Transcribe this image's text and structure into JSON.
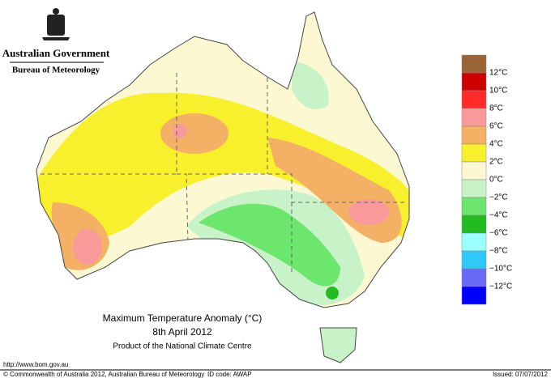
{
  "header": {
    "government": "Australian Government",
    "agency": "Bureau of Meteorology"
  },
  "map": {
    "title": "Maximum Temperature Anomaly (°C)",
    "date": "8th April 2012",
    "product": "Product of the National Climate Centre"
  },
  "legend": {
    "colors": [
      "#9b6436",
      "#cc0000",
      "#ff2a2a",
      "#f99a9a",
      "#f4b064",
      "#f8f02c",
      "#fbf8d2",
      "#c8f2c8",
      "#6ce66c",
      "#22bb22",
      "#9cffff",
      "#30c8f8",
      "#6a6af8",
      "#0000ff"
    ],
    "labels": [
      "12°C",
      "10°C",
      "8°C",
      "6°C",
      "4°C",
      "2°C",
      "0°C",
      "−2°C",
      "−4°C",
      "−6°C",
      "−8°C",
      "−10°C",
      "−12°C"
    ]
  },
  "footer": {
    "url": "http://www.bom.gov.au",
    "copyright": "© Commonwealth of Australia 2012, Australian Bureau of Meteorology",
    "id_code": "ID code: AWAP",
    "issued": "Issued: 07/07/2012"
  }
}
